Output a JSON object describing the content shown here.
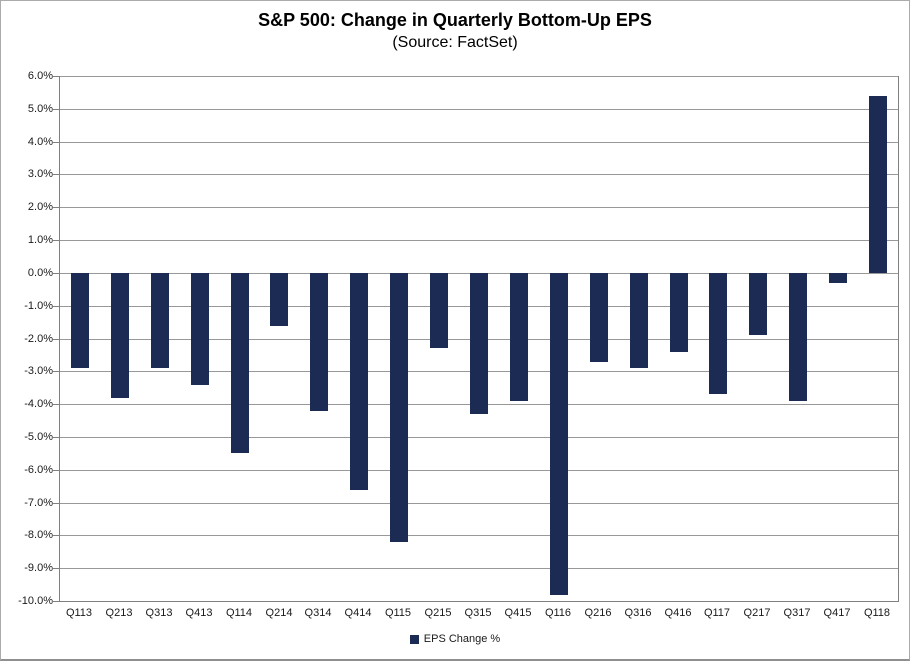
{
  "chart": {
    "title": "S&P 500: Change in Quarterly Bottom-Up EPS",
    "subtitle": "(Source: FactSet)"
  },
  "colors": {
    "bar": "#1c2b53",
    "gridline": "#989898",
    "axis": "#808080",
    "label_text": "#1a1a1a",
    "title_text": "#000000",
    "background": "#ffffff"
  },
  "chart_data": {
    "type": "bar",
    "title": "S&P 500: Change in Quarterly Bottom-Up EPS",
    "subtitle": "(Source: FactSet)",
    "categories": [
      "Q113",
      "Q213",
      "Q313",
      "Q413",
      "Q114",
      "Q214",
      "Q314",
      "Q414",
      "Q115",
      "Q215",
      "Q315",
      "Q415",
      "Q116",
      "Q216",
      "Q316",
      "Q416",
      "Q117",
      "Q217",
      "Q317",
      "Q417",
      "Q118"
    ],
    "series": [
      {
        "name": "EPS Change %",
        "values": [
          -2.9,
          -3.8,
          -2.9,
          -3.4,
          -5.5,
          -1.6,
          -4.2,
          -6.6,
          -8.2,
          -2.3,
          -4.3,
          -3.9,
          -9.8,
          -2.7,
          -2.9,
          -2.4,
          -3.7,
          -1.9,
          -3.9,
          -0.3,
          5.4
        ]
      }
    ],
    "xlabel": "",
    "ylabel": "",
    "ylim": [
      -10,
      6
    ],
    "y_tick_step": 1,
    "y_tick_labels": [
      "6.0%",
      "5.0%",
      "4.0%",
      "3.0%",
      "2.0%",
      "1.0%",
      "0.0%",
      "-1.0%",
      "-2.0%",
      "-3.0%",
      "-4.0%",
      "-5.0%",
      "-6.0%",
      "-7.0%",
      "-8.0%",
      "-9.0%",
      "-10.0%"
    ],
    "grid": true,
    "legend_position": "bottom",
    "legend_entries": [
      "EPS Change %"
    ]
  }
}
